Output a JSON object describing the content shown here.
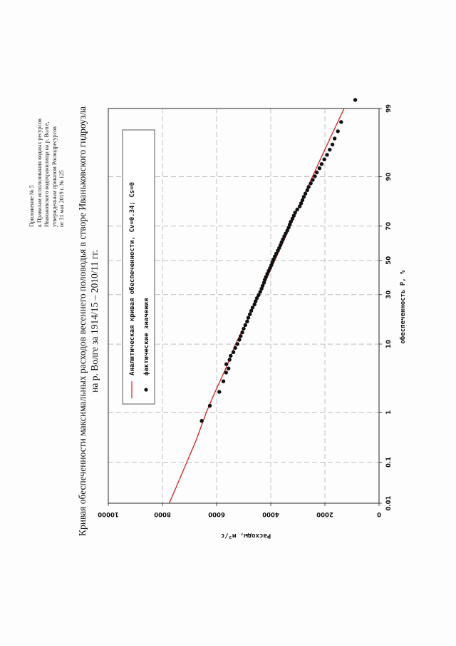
{
  "appendix": {
    "lines": [
      "Приложение № 5",
      "к Правилам использования водных ресурсов",
      "Иваньковского водохранилища на р. Волге,",
      "утвержденным приказом Росводресурсов",
      "от 31 мая 2019 г. № 125"
    ]
  },
  "title": {
    "line1": "Кривая обеспеченности максимальных расходов весеннего половодья в створе Иваньковского гидроузла",
    "line2": "на р. Волге за 1914/15 – 2010/11 гг."
  },
  "colors": {
    "curve": "#d62020",
    "points": "#111111",
    "grid": "#9a9a9a"
  },
  "chart_data": {
    "type": "scatter",
    "xlabel": "обеспеченность P, %",
    "ylabel": "Расходы, м³/с",
    "x_scale": "probability",
    "x_ticks": [
      0.01,
      0.1,
      1,
      10,
      30,
      50,
      70,
      90,
      99
    ],
    "x_tick_labels": [
      "0.01",
      "0.1",
      "1",
      "10",
      "30",
      "50",
      "70",
      "90",
      "99"
    ],
    "ylim": [
      0,
      10000
    ],
    "y_ticks": [
      0,
      2000,
      4000,
      6000,
      8000,
      10000
    ],
    "y_tick_labels": [
      "0",
      "2000",
      "4000",
      "6000",
      "8000",
      "10000"
    ],
    "grid": true,
    "legend": {
      "position": "top-left",
      "entries": [
        {
          "type": "line",
          "label": "Аналитическая  кривая  обеспеченности,  Cv=0.34;  Cs=0"
        },
        {
          "type": "marker",
          "label": "фактические   значения"
        }
      ]
    },
    "series": [
      {
        "type": "line",
        "x": [
          0.01,
          0.03,
          0.1,
          0.3,
          1,
          2,
          5,
          10,
          20,
          30,
          40,
          50,
          60,
          70,
          80,
          90,
          95,
          98,
          99
        ],
        "y": [
          7750,
          7450,
          7100,
          6750,
          6380,
          6100,
          5650,
          5300,
          4780,
          4420,
          4120,
          3850,
          3570,
          3280,
          2950,
          2460,
          2060,
          1600,
          1290
        ]
      },
      {
        "type": "scatter",
        "x": [
          0.7,
          1.3,
          2.2,
          3.2,
          4.3,
          4.9,
          5.6,
          6.4,
          7.2,
          8.0,
          9.0,
          10.0,
          11.2,
          12.3,
          13.5,
          14.8,
          16.1,
          17.5,
          19.0,
          20.5,
          22.0,
          23.5,
          25.0,
          26.6,
          28.2,
          29.8,
          31.5,
          33.2,
          34.9,
          36.6,
          38.3,
          40.0,
          41.8,
          43.6,
          45.3,
          47.1,
          48.9,
          50.6,
          52.4,
          54.1,
          55.9,
          57.6,
          59.3,
          61.0,
          62.7,
          64.4,
          66.0,
          67.6,
          69.2,
          70.8,
          72.3,
          73.8,
          75.3,
          76.8,
          78.2,
          79.6,
          80.9,
          82.2,
          83.5,
          84.7,
          85.9,
          87.0,
          88.1,
          89.1,
          90.1,
          91.1,
          92.1,
          93.0,
          93.9,
          94.7,
          95.5,
          96.2,
          96.9,
          97.6,
          98.3,
          99.3
        ],
        "y": [
          6550,
          6250,
          5900,
          5750,
          5650,
          5560,
          5640,
          5520,
          5480,
          5380,
          5310,
          5230,
          5160,
          5110,
          5050,
          5000,
          4940,
          4870,
          4830,
          4770,
          4720,
          4670,
          4600,
          4560,
          4510,
          4450,
          4390,
          4340,
          4300,
          4250,
          4220,
          4180,
          4130,
          4080,
          4030,
          3980,
          3940,
          3900,
          3850,
          3800,
          3740,
          3690,
          3640,
          3600,
          3550,
          3500,
          3450,
          3390,
          3340,
          3300,
          3260,
          3200,
          3150,
          3100,
          3020,
          2930,
          2880,
          2830,
          2780,
          2720,
          2650,
          2600,
          2520,
          2450,
          2370,
          2300,
          2200,
          2120,
          2020,
          1920,
          1820,
          1720,
          1640,
          1520,
          1400,
          880
        ]
      }
    ]
  }
}
